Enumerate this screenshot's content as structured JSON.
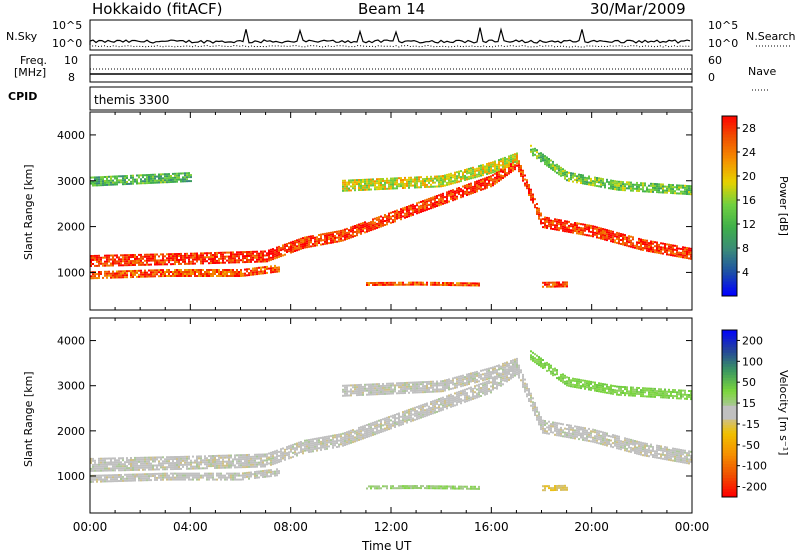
{
  "header": {
    "title_left": "Hokkaido (fitACF)",
    "title_center": "Beam 14",
    "title_right": "30/Mar/2009"
  },
  "top_panels": {
    "nsky_label": "N.Sky",
    "nsky_ticks": [
      "10^5",
      "10^0"
    ],
    "nsearch_label": "N.Search",
    "nsearch_ticks": [
      "10^5",
      "10^0"
    ],
    "freq_label_1": "Freq.",
    "freq_label_2": "[MHz]",
    "freq_ticks": [
      "10",
      "8"
    ],
    "nave_label": "Nave",
    "nave_ticks": [
      "60",
      "0"
    ],
    "cpid_label": "CPID",
    "cpid_value": "themis 3300"
  },
  "colors": {
    "power_scale": [
      "#0000ff",
      "#1c4fa6",
      "#3a8a7a",
      "#3fb04a",
      "#6fd040",
      "#e6d200",
      "#f59000",
      "#f05000",
      "#ff0000"
    ],
    "velocity_scale": [
      "#0000ff",
      "#23429c",
      "#3c9860",
      "#7cd73c",
      "#c0c0c0",
      "#f0c000",
      "#f59000",
      "#f05000",
      "#ff0000"
    ],
    "ground_scatter": "#c0c0c0"
  },
  "chart_data": [
    {
      "type": "heatmap",
      "title": "",
      "ylabel": "Slant Range [km]",
      "xlabel": "",
      "xlim": [
        "00:00",
        "24:00"
      ],
      "ylim": [
        180,
        4500
      ],
      "x_ticks": [
        "00:00",
        "04:00",
        "08:00",
        "12:00",
        "16:00",
        "20:00",
        "00:00"
      ],
      "y_ticks": [
        1000,
        2000,
        3000,
        4000
      ],
      "colorbar_label": "Power [dB]",
      "colorbar_ticks": [
        4,
        8,
        12,
        16,
        20,
        24,
        28
      ],
      "colorbar_range": [
        0,
        30
      ],
      "bands": [
        {
          "t": [
            0.0,
            4.0,
            7.0,
            8.5,
            10.0,
            12.0,
            14.0,
            16.0,
            17.0,
            18.0,
            20.0,
            22.0,
            24.0
          ],
          "r": [
            1250,
            1300,
            1350,
            1650,
            1800,
            2200,
            2600,
            3000,
            3400,
            2100,
            1900,
            1600,
            1400
          ],
          "w": 260,
          "v": 28
        },
        {
          "t": [
            0.0,
            3.0,
            6.0,
            7.5
          ],
          "r": [
            950,
            1000,
            1000,
            1100
          ],
          "w": 150,
          "v": 26
        },
        {
          "t": [
            0.0,
            2.0,
            4.0
          ],
          "r": [
            3000,
            3050,
            3100
          ],
          "w": 180,
          "v": 12
        },
        {
          "t": [
            10.0,
            12.0,
            14.0,
            16.0,
            17.0
          ],
          "r": [
            2900,
            2950,
            3000,
            3300,
            3500
          ],
          "w": 240,
          "v": 18
        },
        {
          "t": [
            11.0,
            13.0,
            15.5
          ],
          "r": [
            750,
            760,
            740
          ],
          "w": 80,
          "v": 26
        },
        {
          "t": [
            18.0,
            19.0
          ],
          "r": [
            750,
            760
          ],
          "w": 90,
          "v": 27
        },
        {
          "t": [
            17.5,
            19.0,
            21.0,
            24.0
          ],
          "r": [
            3700,
            3100,
            2900,
            2800
          ],
          "w": 200,
          "v": 14
        }
      ]
    },
    {
      "type": "heatmap",
      "title": "",
      "ylabel": "Slant Range [km]",
      "xlabel": "Time UT",
      "xlim": [
        "00:00",
        "24:00"
      ],
      "ylim": [
        180,
        4500
      ],
      "x_ticks": [
        "00:00",
        "04:00",
        "08:00",
        "12:00",
        "16:00",
        "20:00",
        "00:00"
      ],
      "y_ticks": [
        1000,
        2000,
        3000,
        4000
      ],
      "colorbar_label": "Velocity [m s⁻¹]",
      "colorbar_ticks": [
        200,
        100,
        50,
        15,
        -15,
        -50,
        -100,
        -200
      ],
      "colorbar_range": [
        -250,
        250
      ],
      "bands": [
        {
          "t": [
            0.0,
            4.0,
            7.0,
            8.5,
            10.0,
            12.0,
            14.0,
            16.0,
            17.0,
            18.0,
            20.0,
            22.0,
            24.0
          ],
          "r": [
            1250,
            1300,
            1350,
            1650,
            1800,
            2200,
            2600,
            3000,
            3400,
            2100,
            1900,
            1600,
            1400
          ],
          "w": 300,
          "v": 0
        },
        {
          "t": [
            0.0,
            3.0,
            6.0,
            7.5
          ],
          "r": [
            950,
            1000,
            1000,
            1100
          ],
          "w": 150,
          "v": 0
        },
        {
          "t": [
            10.0,
            12.0,
            14.0,
            16.0,
            17.0
          ],
          "r": [
            2900,
            2950,
            3000,
            3300,
            3500
          ],
          "w": 240,
          "v": 0
        },
        {
          "t": [
            11.0,
            13.0,
            15.5
          ],
          "r": [
            750,
            760,
            740
          ],
          "w": 80,
          "v": 40
        },
        {
          "t": [
            18.0,
            19.0
          ],
          "r": [
            750,
            760
          ],
          "w": 90,
          "v": -40
        },
        {
          "t": [
            17.5,
            19.0,
            21.0,
            24.0
          ],
          "r": [
            3700,
            3100,
            2900,
            2800
          ],
          "w": 200,
          "v": 60
        }
      ]
    }
  ]
}
